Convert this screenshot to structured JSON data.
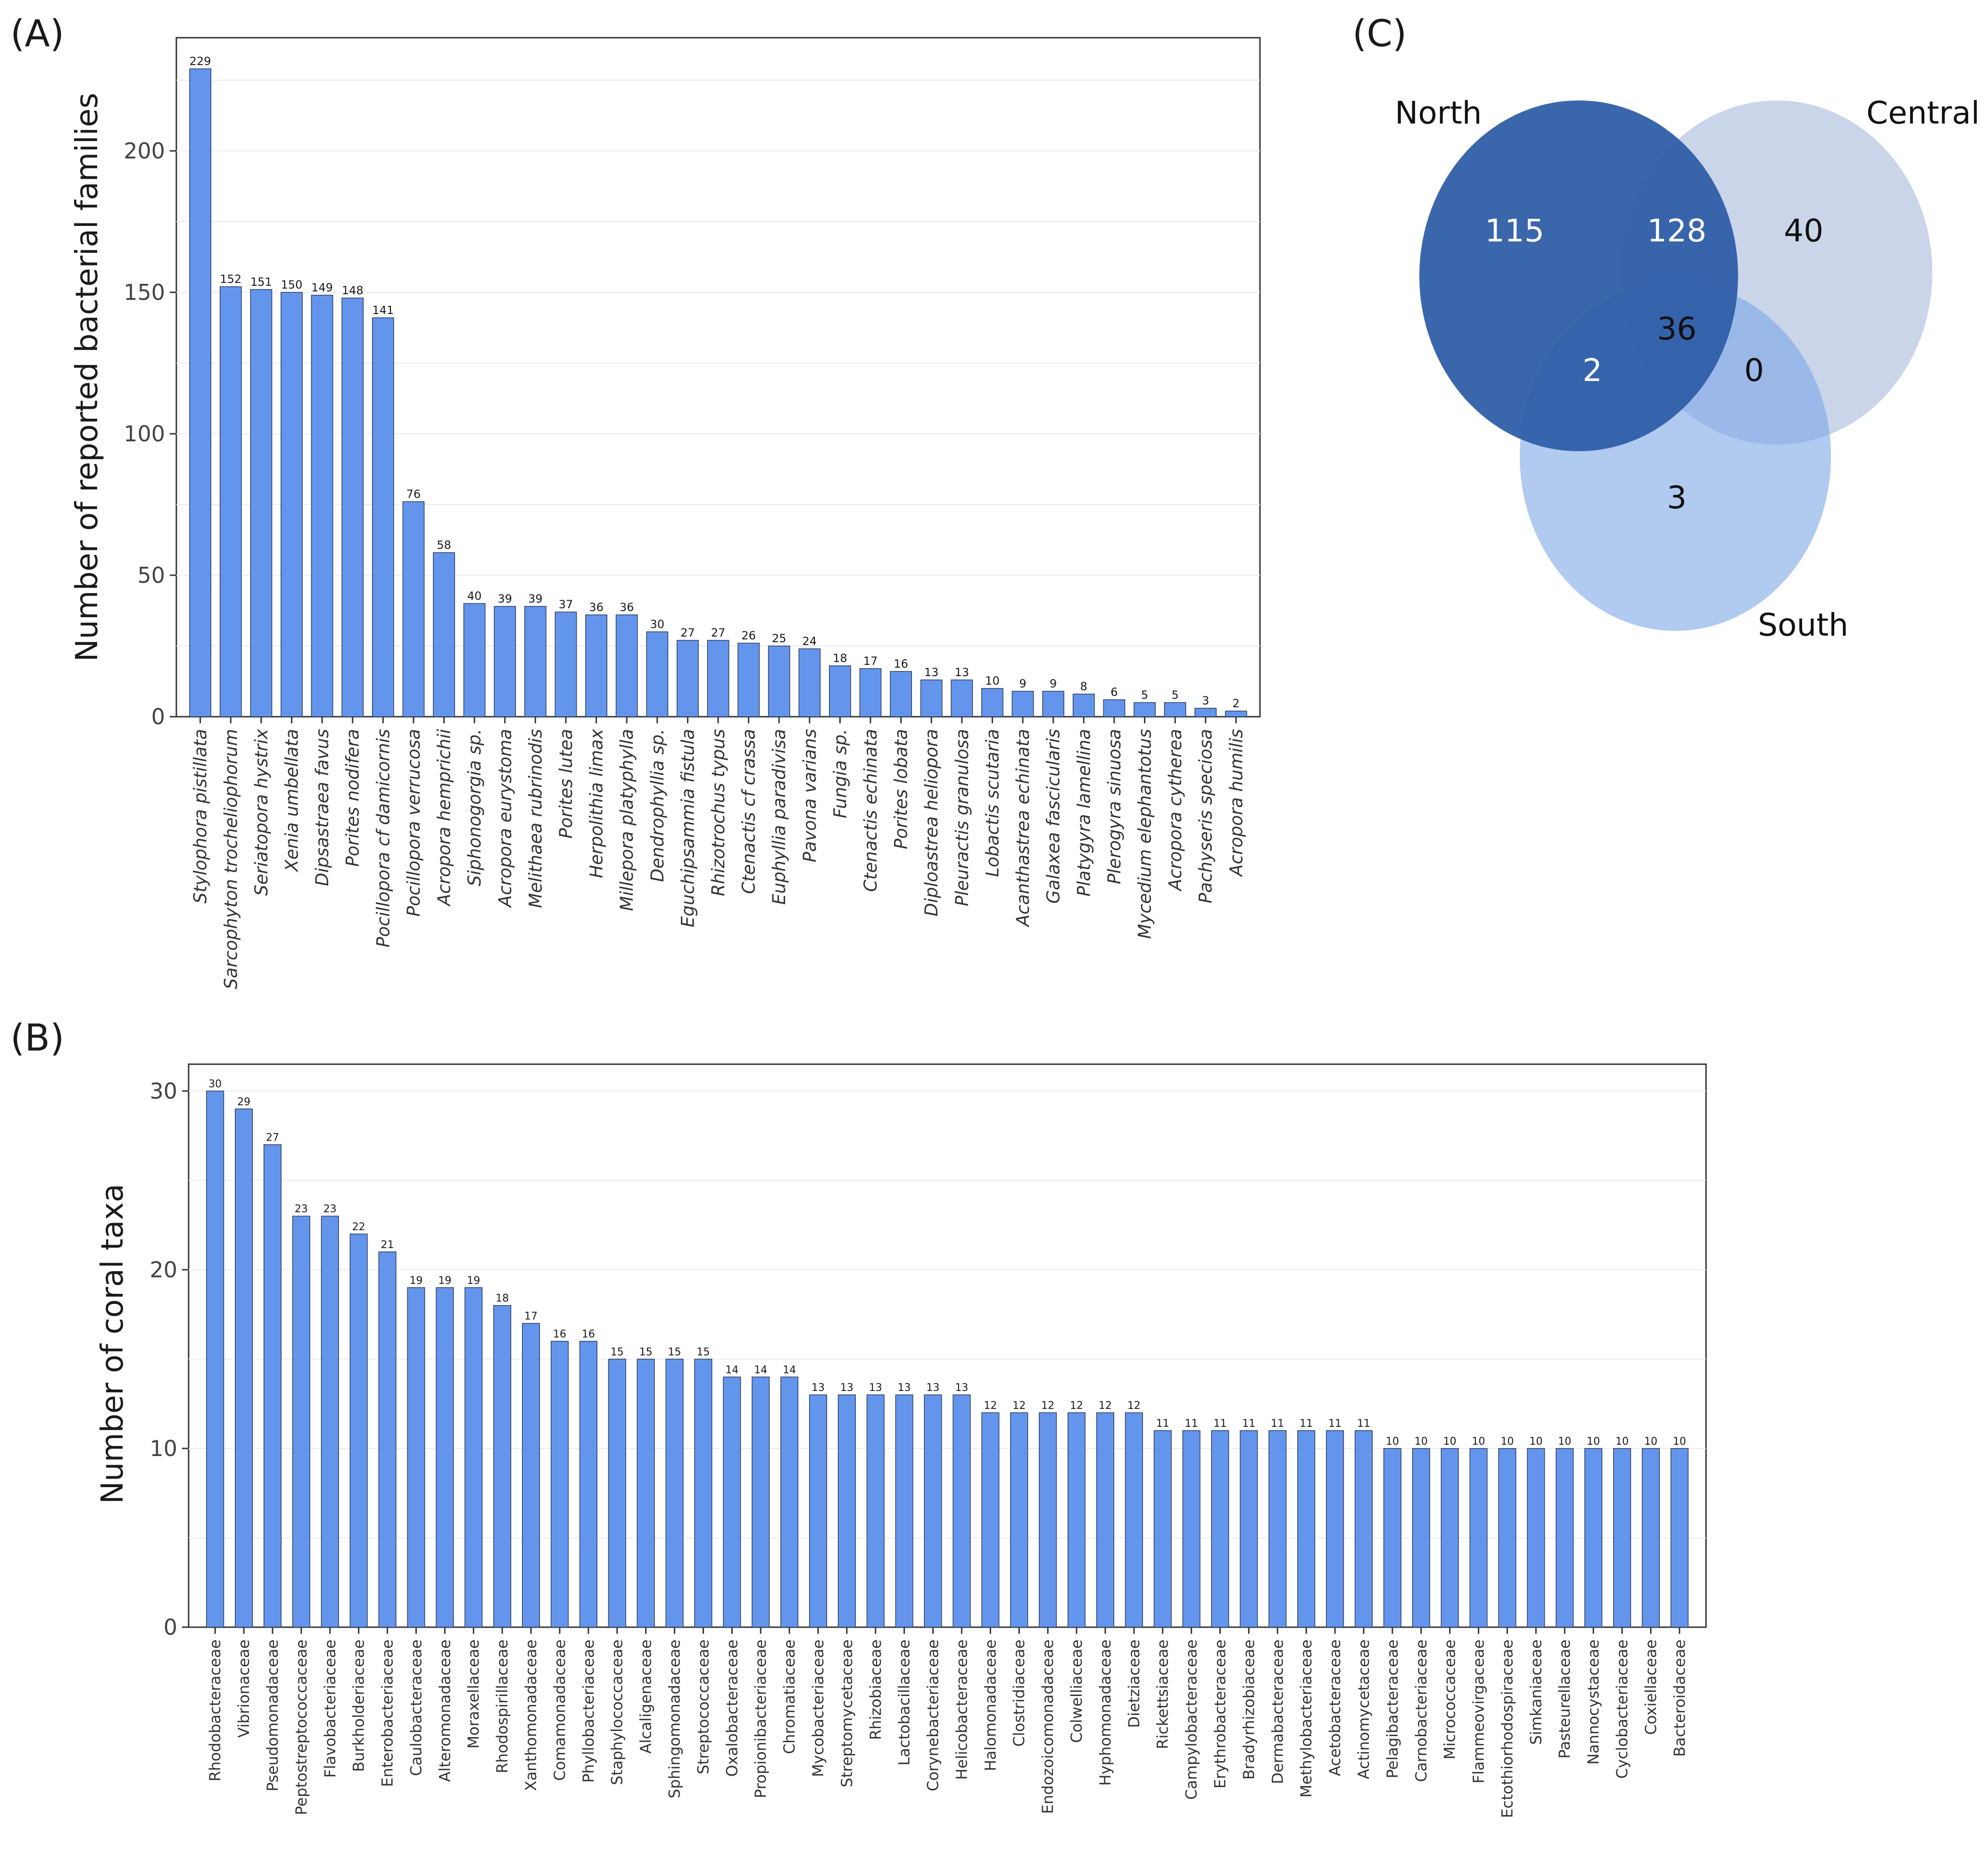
{
  "panels": {
    "a": "(A)",
    "b": "(B)",
    "c": "(C)"
  },
  "colors": {
    "bar_fill": "#6495ED",
    "bar_stroke": "#2a3a5a",
    "grid": "#ebebeb",
    "frame": "#333333"
  },
  "chart_data": [
    {
      "panel": "(A)",
      "type": "bar",
      "title": "",
      "xlabel": "",
      "ylabel": "Number of reported bacterial families",
      "ylim": [
        0,
        240
      ],
      "yticks": [
        0,
        50,
        100,
        150,
        200
      ],
      "grid": true,
      "italic_categories": true,
      "categories": [
        "Stylophora pistillata",
        "Sarcophyton trocheliophorum",
        "Seriatopora hystrix",
        "Xenia umbellata",
        "Dipsastraea favus",
        "Porites nodifera",
        "Pocillopora cf damicornis",
        "Pocillopora verrucosa",
        "Acropora hemprichii",
        "Siphonogorgia sp.",
        "Acropora eurystoma",
        "Melithaea rubrinodis",
        "Porites lutea",
        "Herpolithia limax",
        "Millepora platyphylla",
        "Dendrophyllia sp.",
        "Eguchipsammia fistula",
        "Rhizotrochus typus",
        "Ctenactis cf crassa",
        "Euphyllia paradivisa",
        "Pavona varians",
        "Fungia sp.",
        "Ctenactis echinata",
        "Porites lobata",
        "Diploastrea heliopora",
        "Pleuractis granulosa",
        "Lobactis scutaria",
        "Acanthastrea echinata",
        "Galaxea fascicularis",
        "Platygyra lamellina",
        "Plerogyra sinuosa",
        "Mycedium elephantotus",
        "Acropora cytherea",
        "Pachyseris speciosa",
        "Acropora humilis"
      ],
      "values": [
        229,
        152,
        151,
        150,
        149,
        148,
        141,
        76,
        58,
        40,
        39,
        39,
        37,
        36,
        36,
        30,
        27,
        27,
        26,
        25,
        24,
        18,
        17,
        16,
        13,
        13,
        10,
        9,
        9,
        8,
        6,
        5,
        5,
        3,
        2
      ]
    },
    {
      "panel": "(B)",
      "type": "bar",
      "title": "",
      "xlabel": "",
      "ylabel": "Number of coral taxa",
      "ylim": [
        0,
        31.5
      ],
      "yticks": [
        0,
        10,
        20,
        30
      ],
      "grid": true,
      "italic_categories": false,
      "categories": [
        "Rhodobacteraceae",
        "Vibrionaceae",
        "Pseudomonadaceae",
        "Peptostreptococcaceae",
        "Flavobacteriaceae",
        "Burkholderiaceae",
        "Enterobacteriaceae",
        "Caulobacteraceae",
        "Alteromonadaceae",
        "Moraxellaceae",
        "Rhodospirillaceae",
        "Xanthomonadaceae",
        "Comamonadaceae",
        "Phyllobacteriaceae",
        "Staphylococcaceae",
        "Alcaligenaceae",
        "Sphingomonadaceae",
        "Streptococcaceae",
        "Oxalobacteraceae",
        "Propionibacteriaceae",
        "Chromatiaceae",
        "Mycobacteriaceae",
        "Streptomycetaceae",
        "Rhizobiaceae",
        "Lactobacillaceae",
        "Corynebacteriaceae",
        "Helicobacteraceae",
        "Halomonadaceae",
        "Clostridiaceae",
        "Endozoicomonadaceae",
        "Colwelliaceae",
        "Hyphomonadaceae",
        "Dietziaceae",
        "Rickettsiaceae",
        "Campylobacteraceae",
        "Erythrobacteraceae",
        "Bradyrhizobiaceae",
        "Dermabacteraceae",
        "Methylobacteriaceae",
        "Acetobacteraceae",
        "Actinomycetaceae",
        "Pelagibacteraceae",
        "Carnobacteriaceae",
        "Micrococcaceae",
        "Flammeovirgaceae",
        "Ectothiorhodospiraceae",
        "Simkaniaceae",
        "Pasteurellaceae",
        "Nannocystaceae",
        "Cyclobacteriaceae",
        "Coxiellaceae",
        "Bacteroidaceae"
      ],
      "values": [
        30,
        29,
        27,
        23,
        23,
        22,
        21,
        19,
        19,
        19,
        18,
        17,
        16,
        16,
        15,
        15,
        15,
        15,
        14,
        14,
        14,
        13,
        13,
        13,
        13,
        13,
        13,
        12,
        12,
        12,
        12,
        12,
        12,
        11,
        11,
        11,
        11,
        11,
        11,
        11,
        11,
        10,
        10,
        10,
        10,
        10,
        10,
        10,
        10,
        10,
        10,
        10
      ]
    },
    {
      "panel": "(C)",
      "type": "venn",
      "sets": [
        {
          "name": "North",
          "color": "#2F5EA8",
          "opacity": 0.95
        },
        {
          "name": "Central",
          "color": "#9FB3D8",
          "opacity": 0.55
        },
        {
          "name": "South",
          "color": "#7BA7E6",
          "opacity": 0.6
        }
      ],
      "regions": {
        "north_only": "115",
        "north_central": "128",
        "central_only": "40",
        "all_three": "36",
        "north_south": "2",
        "central_south": "0",
        "south_only": "3"
      }
    }
  ]
}
